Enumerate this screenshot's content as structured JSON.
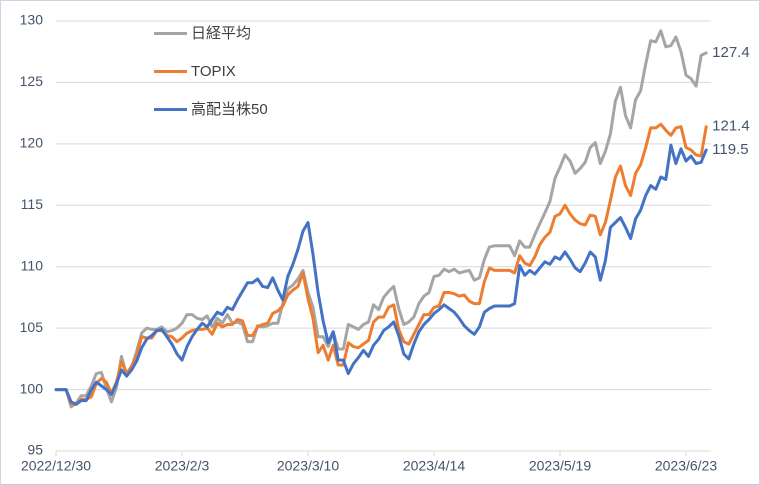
{
  "chart_data": {
    "type": "line",
    "title": "",
    "grid": true,
    "legend_position": "top-left-inside",
    "colors": {
      "grid": "#D9D9D9",
      "text": "#44546A",
      "tick": "#D9D9D9"
    },
    "y_axis": {
      "min": 95,
      "max": 130,
      "step": 5,
      "tick_labels": [
        "95",
        "100",
        "105",
        "110",
        "115",
        "120",
        "125",
        "130"
      ]
    },
    "x_axis": {
      "tick_labels": [
        "2022/12/30",
        "2023/2/3",
        "2023/3/10",
        "2023/4/14",
        "2023/5/19",
        "2023/6/23"
      ],
      "tick_indices": [
        0,
        25,
        50,
        75,
        100,
        125
      ],
      "point_count": 130
    },
    "series": [
      {
        "name": "日経平均",
        "color": "#A5A5A5",
        "end_label": "127.4",
        "values": [
          100,
          100,
          100,
          98.6,
          98.9,
          99.5,
          99.5,
          100.3,
          101.3,
          101.4,
          100.1,
          99,
          100.2,
          102.7,
          101.2,
          101.8,
          103.1,
          104.6,
          105,
          104.9,
          104.9,
          105.1,
          104.7,
          104.8,
          105,
          105.4,
          106.1,
          106.1,
          105.8,
          105.7,
          106,
          105.1,
          105.8,
          105.4,
          106.1,
          105.4,
          105.5,
          105.3,
          103.9,
          103.9,
          105.2,
          105.1,
          105.2,
          105.4,
          105.4,
          107,
          108.2,
          108.5,
          109,
          109.7,
          107.9,
          106.7,
          104.3,
          104.3,
          103.5,
          104.7,
          103.3,
          103.3,
          105.3,
          105.1,
          104.9,
          105.3,
          105.5,
          106.9,
          106.5,
          107.5,
          108,
          108.4,
          106.6,
          105.3,
          105.5,
          105.9,
          107,
          107.6,
          107.9,
          109.2,
          109.3,
          109.8,
          109.6,
          109.8,
          109.5,
          109.6,
          109.7,
          108.9,
          109.1,
          110.6,
          111.6,
          111.7,
          111.7,
          111.7,
          111.7,
          110.9,
          112.1,
          111.6,
          111.6,
          112.6,
          113.5,
          114.4,
          115.3,
          117.2,
          118.1,
          119.1,
          118.6,
          117.6,
          118,
          118.5,
          119.7,
          120.1,
          118.4,
          119.4,
          120.8,
          123.5,
          124.6,
          122.3,
          121.3,
          123.6,
          124.3,
          126.5,
          128.4,
          128.3,
          129.2,
          127.9,
          128,
          128.7,
          127.5,
          125.6,
          125.3,
          124.7,
          127.2,
          127.4
        ]
      },
      {
        "name": "TOPIX",
        "color": "#ED7D31",
        "end_label": "121.4",
        "values": [
          100,
          100,
          100,
          98.8,
          98.8,
          99.2,
          99.2,
          99.4,
          100.5,
          100.9,
          100.6,
          99.7,
          100.6,
          102.3,
          101.3,
          101.9,
          102.8,
          104.3,
          104.2,
          104.2,
          104.8,
          104.8,
          104.4,
          104.3,
          103.9,
          104.2,
          104.6,
          104.8,
          104.9,
          104.9,
          105,
          104.5,
          105.4,
          105.1,
          105.3,
          105.3,
          105.7,
          105.6,
          104.4,
          104.4,
          105.1,
          105.3,
          105.4,
          106.2,
          106.4,
          106.8,
          107.7,
          108.1,
          108.4,
          109.5,
          107.4,
          105.8,
          103,
          103.6,
          102.4,
          103.6,
          102,
          102,
          103.8,
          103.5,
          103.4,
          103.7,
          104,
          105.5,
          105.9,
          105.9,
          106.7,
          106.9,
          104.9,
          103.9,
          103.7,
          104.5,
          105.3,
          106.1,
          106.1,
          106.7,
          106.8,
          107.9,
          107.9,
          107.8,
          107.6,
          107.7,
          107.2,
          107,
          107,
          108.8,
          109.9,
          109.7,
          109.7,
          109.7,
          109.7,
          109.5,
          110.9,
          110.3,
          110.1,
          110.8,
          111.8,
          112.4,
          112.8,
          114.1,
          114.3,
          115,
          114.3,
          113.8,
          113.5,
          113.4,
          114.2,
          114.1,
          112.6,
          113.6,
          115.4,
          117.3,
          118.2,
          116.6,
          115.8,
          117.6,
          118.3,
          119.7,
          121.3,
          121.3,
          121.6,
          121.1,
          120.7,
          121.3,
          121.4,
          119.7,
          119.5,
          119.1,
          119,
          121.4
        ]
      },
      {
        "name": "高配当株50",
        "color": "#4472C4",
        "end_label": "119.5",
        "values": [
          100,
          100,
          100,
          99,
          98.8,
          99.1,
          99.1,
          100,
          100.6,
          100.3,
          100,
          99.6,
          100.5,
          101.6,
          101.1,
          101.6,
          102.3,
          103.4,
          104.1,
          104.4,
          104.8,
          104.9,
          104.3,
          103.7,
          102.9,
          102.4,
          103.5,
          104.3,
          104.9,
          105.4,
          105.1,
          105.7,
          106.3,
          106.1,
          106.7,
          106.5,
          107.3,
          108,
          108.7,
          108.7,
          109,
          108.4,
          108.3,
          109.1,
          108.1,
          107.3,
          109.2,
          110.2,
          111.4,
          112.9,
          113.6,
          111,
          107.9,
          105.6,
          103.8,
          104.7,
          102.4,
          102.4,
          101.3,
          102.1,
          102.6,
          103.2,
          102.7,
          103.6,
          104.1,
          104.8,
          105.1,
          105.5,
          104.4,
          102.9,
          102.5,
          103.7,
          104.7,
          105.3,
          105.7,
          106.2,
          106.5,
          106.9,
          106.6,
          106.3,
          105.8,
          105.2,
          104.8,
          104.5,
          105.1,
          106.3,
          106.6,
          106.8,
          106.8,
          106.8,
          106.8,
          107,
          110.1,
          109.3,
          109.7,
          109.4,
          109.9,
          110.4,
          110.2,
          110.8,
          110.6,
          111.2,
          110.6,
          109.9,
          109.6,
          110.3,
          111.2,
          110.8,
          108.9,
          110.5,
          113.2,
          113.6,
          114,
          113.2,
          112.3,
          113.9,
          114.6,
          115.8,
          116.6,
          116.3,
          117.3,
          117.1,
          119.9,
          118.4,
          119.6,
          118.6,
          119,
          118.4,
          118.5,
          119.5
        ]
      }
    ]
  }
}
